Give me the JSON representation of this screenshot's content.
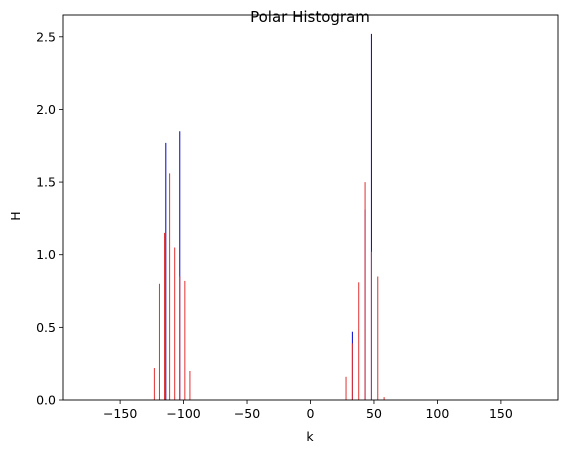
{
  "chart_data": {
    "type": "bar",
    "title": "Polar Histogram",
    "xlabel": "k",
    "ylabel": "H",
    "xlim": [
      -195,
      195
    ],
    "ylim": [
      0,
      2.65
    ],
    "xticks": [
      -150,
      -100,
      -50,
      0,
      50,
      100,
      150
    ],
    "xtick_labels": [
      "−150",
      "−100",
      "−50",
      "0",
      "50",
      "100",
      "150"
    ],
    "yticks": [
      0.0,
      0.5,
      1.0,
      1.5,
      2.0,
      2.5
    ],
    "ytick_labels": [
      "0.0",
      "0.5",
      "1.0",
      "1.5",
      "2.0",
      "2.5"
    ],
    "grid": false,
    "legend": "none",
    "series": [
      {
        "color": "#0000cc",
        "x": [
          -114,
          -103,
          33,
          43,
          48
        ],
        "values": [
          1.77,
          1.85,
          0.47,
          1.31,
          2.52
        ]
      },
      {
        "color": "#e03030",
        "x": [
          -123,
          -119,
          -115,
          -111,
          -107,
          -103,
          -99,
          -95,
          28,
          33,
          38,
          43,
          48,
          53,
          58
        ],
        "values": [
          0.22,
          0.8,
          1.15,
          1.56,
          1.05,
          0.85,
          0.82,
          0.2,
          0.16,
          0.39,
          0.81,
          1.5,
          1.02,
          0.85,
          0.02
        ]
      }
    ]
  }
}
